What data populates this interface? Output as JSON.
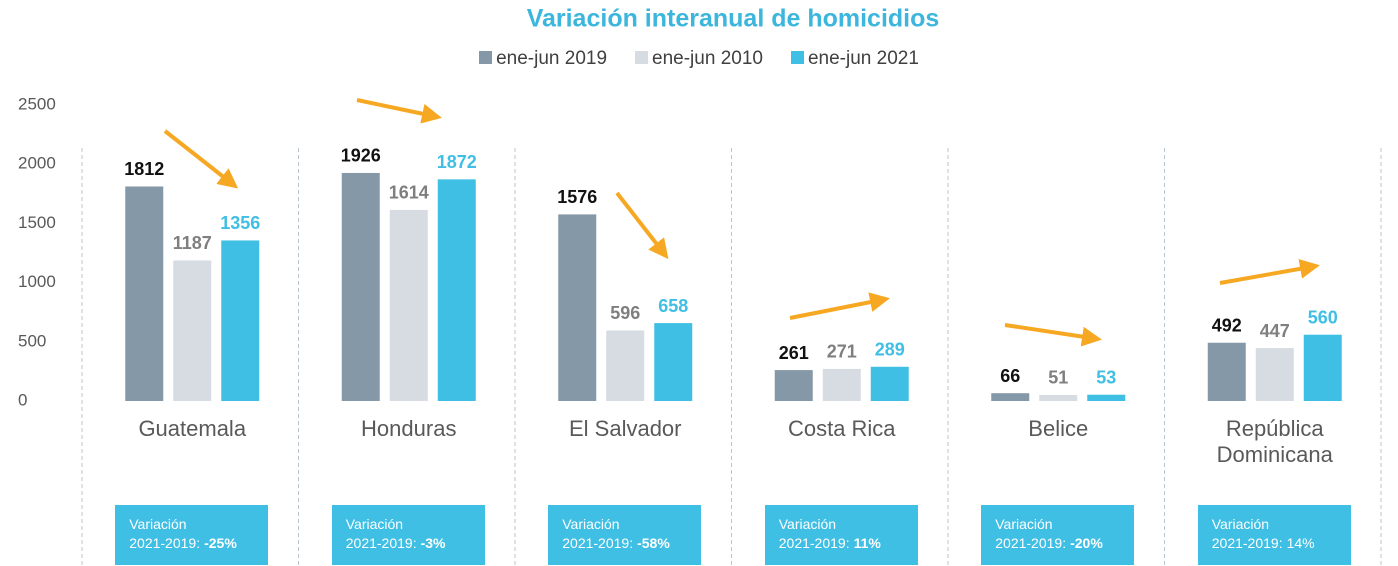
{
  "chart_data": {
    "type": "bar",
    "title": "Variación interanual de homicidios",
    "categories": [
      "Guatemala",
      "Honduras",
      "El Salvador",
      "Costa Rica",
      "Belice",
      "República Dominicana"
    ],
    "series": [
      {
        "name": "ene-jun 2019",
        "color": "#8598a8",
        "label_color": "#111111",
        "values": [
          1812,
          1926,
          1576,
          261,
          66,
          492
        ]
      },
      {
        "name": "ene-jun 2010",
        "color": "#d6dce2",
        "label_color": "#7f7f7f",
        "values": [
          1187,
          1614,
          596,
          271,
          51,
          447
        ]
      },
      {
        "name": "ene-jun 2021",
        "color": "#40bfe4",
        "label_color": "#40bfe4",
        "values": [
          1356,
          1872,
          658,
          289,
          53,
          560
        ]
      }
    ],
    "ylim": [
      0,
      2500
    ],
    "yticks": [
      0,
      500,
      1000,
      1500,
      2000,
      2500
    ],
    "grid": false,
    "boxes": [
      {
        "line1": "Variación",
        "prefix": "2021-2019:",
        "value": "-25%",
        "bold": true
      },
      {
        "line1": "Variación",
        "prefix": "2021-2019:",
        "value": "-3%",
        "bold": true
      },
      {
        "line1": "Variación",
        "prefix": "2021-2019:",
        "value": "-58%",
        "bold": true
      },
      {
        "line1": "Variación",
        "prefix": "2021-2019:",
        "value": "11%",
        "bold": true
      },
      {
        "line1": "Variación",
        "prefix": "2021-2019:",
        "value": "-20%",
        "bold": true
      },
      {
        "line1": "Variación",
        "prefix": "2021-2019:",
        "value": "14%",
        "bold": false
      }
    ]
  }
}
